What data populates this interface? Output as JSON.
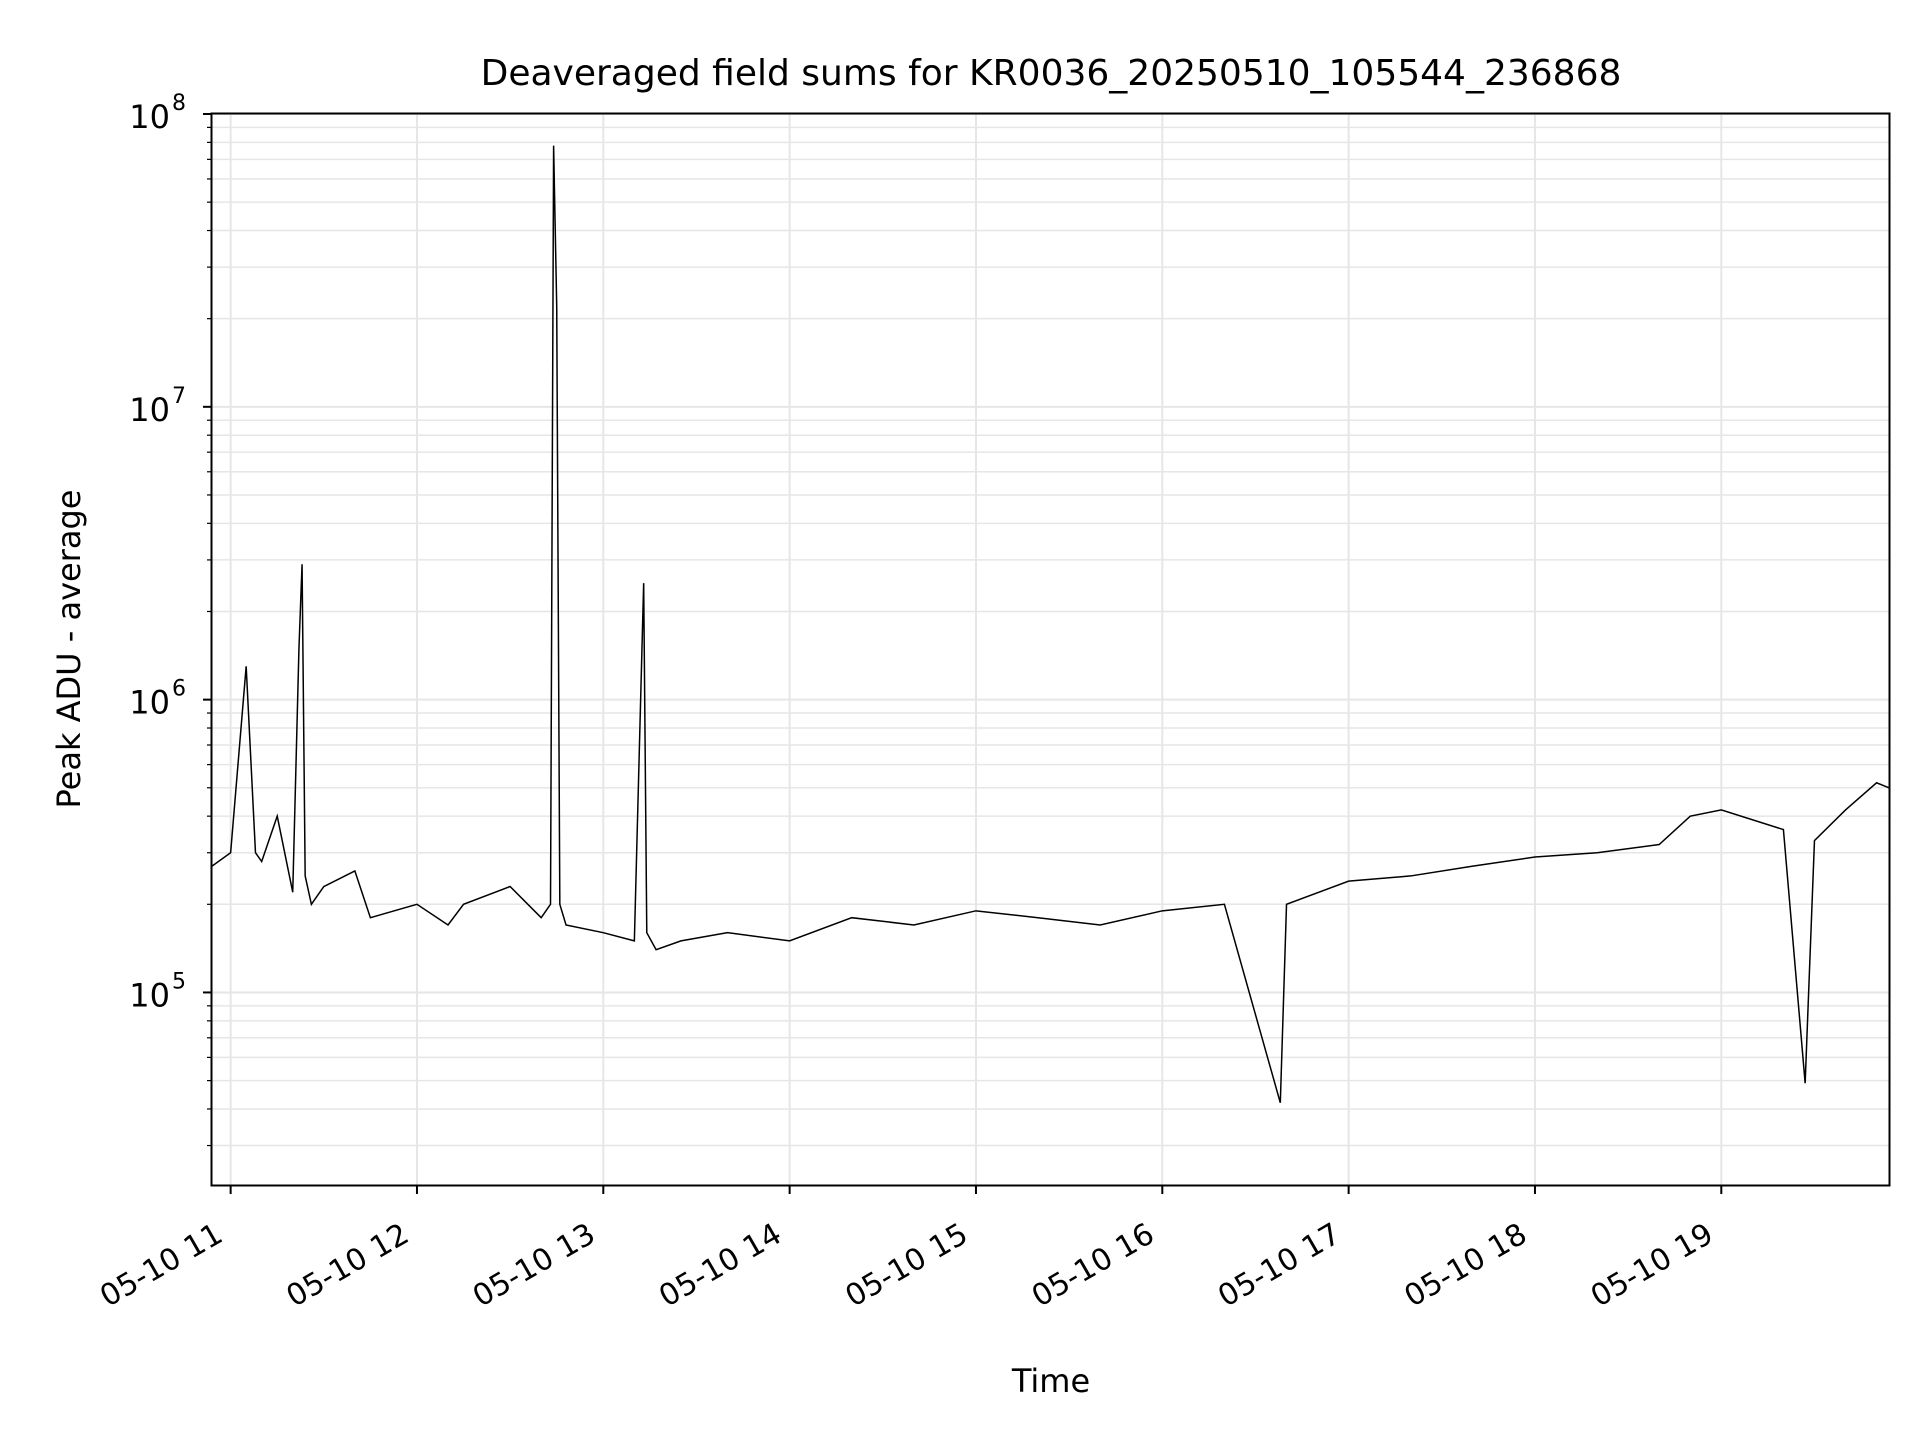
{
  "chart_data": {
    "type": "line",
    "title": "Deaveraged field sums for KR0036_20250510_105544_236868",
    "xlabel": "Time",
    "ylabel": "Peak ADU - average",
    "yscale": "log",
    "xlim": [
      "2025-05-10 10:54",
      "2025-05-10 19:54"
    ],
    "ylim": [
      22000,
      100000000
    ],
    "grid": "major and minor",
    "line_color": "#000000",
    "grid_color": "#e6e6e6",
    "x_ticks": [
      {
        "value": "2025-05-10 11:00",
        "label": "05-10 11"
      },
      {
        "value": "2025-05-10 12:00",
        "label": "05-10 12"
      },
      {
        "value": "2025-05-10 13:00",
        "label": "05-10 13"
      },
      {
        "value": "2025-05-10 14:00",
        "label": "05-10 14"
      },
      {
        "value": "2025-05-10 15:00",
        "label": "05-10 15"
      },
      {
        "value": "2025-05-10 16:00",
        "label": "05-10 16"
      },
      {
        "value": "2025-05-10 17:00",
        "label": "05-10 17"
      },
      {
        "value": "2025-05-10 18:00",
        "label": "05-10 18"
      },
      {
        "value": "2025-05-10 19:00",
        "label": "05-10 19"
      }
    ],
    "y_ticks": [
      {
        "value": 100000,
        "base": "10",
        "exp": "5"
      },
      {
        "value": 1000000,
        "base": "10",
        "exp": "6"
      },
      {
        "value": 10000000,
        "base": "10",
        "exp": "7"
      },
      {
        "value": 100000000,
        "base": "10",
        "exp": "8"
      }
    ],
    "series": [
      {
        "x": [
          "2025-05-10 10:54",
          "2025-05-10 11:00",
          "2025-05-10 11:05",
          "2025-05-10 11:08",
          "2025-05-10 11:10",
          "2025-05-10 11:15",
          "2025-05-10 11:20",
          "2025-05-10 11:22",
          "2025-05-10 11:23",
          "2025-05-10 11:24",
          "2025-05-10 11:26",
          "2025-05-10 11:30",
          "2025-05-10 11:40",
          "2025-05-10 11:45",
          "2025-05-10 12:00",
          "2025-05-10 12:10",
          "2025-05-10 12:15",
          "2025-05-10 12:30",
          "2025-05-10 12:40",
          "2025-05-10 12:43",
          "2025-05-10 12:44",
          "2025-05-10 12:45",
          "2025-05-10 12:46",
          "2025-05-10 12:48",
          "2025-05-10 13:00",
          "2025-05-10 13:10",
          "2025-05-10 13:13",
          "2025-05-10 13:14",
          "2025-05-10 13:17",
          "2025-05-10 13:25",
          "2025-05-10 13:40",
          "2025-05-10 14:00",
          "2025-05-10 14:20",
          "2025-05-10 14:40",
          "2025-05-10 15:00",
          "2025-05-10 15:20",
          "2025-05-10 15:40",
          "2025-05-10 16:00",
          "2025-05-10 16:20",
          "2025-05-10 16:38",
          "2025-05-10 16:40",
          "2025-05-10 17:00",
          "2025-05-10 17:20",
          "2025-05-10 17:40",
          "2025-05-10 18:00",
          "2025-05-10 18:20",
          "2025-05-10 18:40",
          "2025-05-10 18:50",
          "2025-05-10 19:00",
          "2025-05-10 19:20",
          "2025-05-10 19:27",
          "2025-05-10 19:30",
          "2025-05-10 19:40",
          "2025-05-10 19:50",
          "2025-05-10 19:54"
        ],
        "y": [
          270000,
          300000,
          1300000,
          300000,
          280000,
          400000,
          220000,
          1500000,
          2900000,
          250000,
          200000,
          230000,
          260000,
          180000,
          200000,
          170000,
          200000,
          230000,
          180000,
          200000,
          78000000,
          22000000,
          200000,
          170000,
          160000,
          150000,
          2500000,
          160000,
          140000,
          150000,
          160000,
          150000,
          180000,
          170000,
          190000,
          180000,
          170000,
          190000,
          200000,
          42000,
          200000,
          240000,
          250000,
          270000,
          290000,
          300000,
          320000,
          400000,
          420000,
          360000,
          49000,
          330000,
          420000,
          520000,
          500000
        ]
      }
    ]
  }
}
